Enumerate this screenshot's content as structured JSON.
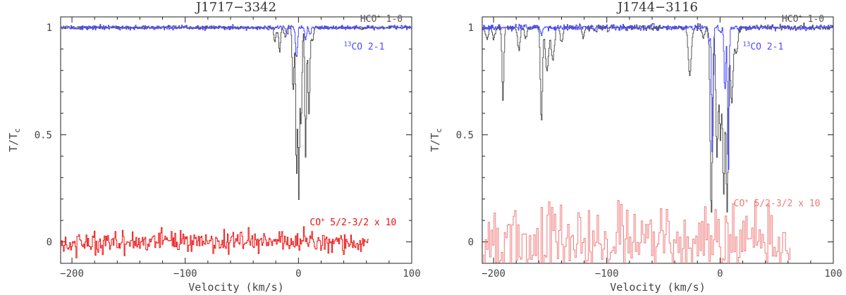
{
  "x_axis_label": "Velocity (km/s)",
  "y_axis_label": "T/T",
  "y_axis_label_sub": "c",
  "colors": {
    "hco": "#555555",
    "co13": "#4b4bff",
    "coplus_left": "#ee1111",
    "coplus_right": "#f07a7a",
    "axis": "#222222"
  },
  "chart_data": [
    {
      "type": "line",
      "title": "J1717−3342",
      "xlim": [
        -210,
        100
      ],
      "ylim": [
        -0.1,
        1.05
      ],
      "x_ticks": [
        -200,
        -100,
        0,
        100
      ],
      "x_tick_labels": [
        "−200",
        "−100",
        "0",
        "100"
      ],
      "y_ticks": [
        0,
        0.5,
        1
      ],
      "y_tick_labels": [
        "0",
        "0.5",
        "1"
      ],
      "xlabel": "Velocity (km/s)",
      "ylabel": "T/T_c",
      "series": [
        {
          "name": "HCO⁺ 1-0",
          "label_sup": "+",
          "label_main": "HCO",
          "label_rest": " 1-0",
          "baseline": 1.0,
          "noise": 0.004,
          "x_range": [
            -210,
            100
          ],
          "step": 0.6,
          "absorptions": [
            {
              "v": -21,
              "depth": 0.06,
              "width": 1.0
            },
            {
              "v": -17,
              "depth": 0.12,
              "width": 0.8
            },
            {
              "v": -12,
              "depth": 0.04,
              "width": 1.0
            },
            {
              "v": -5,
              "depth": 0.3,
              "width": 0.8
            },
            {
              "v": -2,
              "depth": 0.7,
              "width": 0.7
            },
            {
              "v": 0,
              "depth": 0.77,
              "width": 0.6
            },
            {
              "v": 2,
              "depth": 0.45,
              "width": 0.8
            },
            {
              "v": 6,
              "depth": 0.6,
              "width": 0.7
            },
            {
              "v": 9,
              "depth": 0.4,
              "width": 0.8
            },
            {
              "v": 12,
              "depth": 0.06,
              "width": 1.0
            }
          ]
        },
        {
          "name": "13CO 2-1",
          "label_sup": "13",
          "label_main": "CO",
          "label_rest": " 2-1",
          "baseline": 1.0,
          "noise": 0.005,
          "x_range": [
            -210,
            100
          ],
          "step": 0.6,
          "absorptions": [
            {
              "v": -10,
              "depth": 0.03,
              "width": 0.8
            },
            {
              "v": -2,
              "depth": 0.14,
              "width": 0.9
            },
            {
              "v": 6,
              "depth": 0.06,
              "width": 0.7
            },
            {
              "v": 10,
              "depth": 0.04,
              "width": 0.7
            }
          ]
        },
        {
          "name": "CO⁺ 5/2-3/2 x 10",
          "label_sup": "+",
          "label_main": "CO",
          "label_rest": " 5/2-3/2 x 10",
          "baseline": 0.0,
          "noise": 0.025,
          "x_range": [
            -210,
            62
          ],
          "step": 0.8,
          "absorptions": []
        }
      ]
    },
    {
      "type": "line",
      "title": "J1744−3116",
      "xlim": [
        -210,
        100
      ],
      "ylim": [
        -0.1,
        1.05
      ],
      "x_ticks": [
        -200,
        -100,
        0,
        100
      ],
      "x_tick_labels": [
        "−200",
        "−100",
        "0",
        "100"
      ],
      "y_ticks": [
        0,
        0.5,
        1
      ],
      "y_tick_labels": [
        "0",
        "0.5",
        "1"
      ],
      "xlabel": "Velocity (km/s)",
      "ylabel": "T/T_c",
      "series": [
        {
          "name": "HCO⁺ 1-0",
          "label_sup": "+",
          "label_main": "HCO",
          "label_rest": " 1-0",
          "baseline": 1.0,
          "noise": 0.006,
          "x_range": [
            -210,
            100
          ],
          "step": 0.6,
          "absorptions": [
            {
              "v": -206,
              "depth": 0.06,
              "width": 1.2
            },
            {
              "v": -200,
              "depth": 0.05,
              "width": 1.2
            },
            {
              "v": -192,
              "depth": 0.34,
              "width": 0.8
            },
            {
              "v": -178,
              "depth": 0.1,
              "width": 1.2
            },
            {
              "v": -172,
              "depth": 0.05,
              "width": 1.2
            },
            {
              "v": -158,
              "depth": 0.44,
              "width": 0.9
            },
            {
              "v": -153,
              "depth": 0.2,
              "width": 1.4
            },
            {
              "v": -148,
              "depth": 0.15,
              "width": 1.4
            },
            {
              "v": -140,
              "depth": 0.07,
              "width": 1.2
            },
            {
              "v": -121,
              "depth": 0.05,
              "width": 1.0
            },
            {
              "v": -110,
              "depth": 0.02,
              "width": 1.0
            },
            {
              "v": -27,
              "depth": 0.22,
              "width": 1.4
            },
            {
              "v": -15,
              "depth": 0.05,
              "width": 1.0
            },
            {
              "v": -8,
              "depth": 0.87,
              "width": 1.0
            },
            {
              "v": -3,
              "depth": 0.6,
              "width": 1.0
            },
            {
              "v": 0,
              "depth": 0.5,
              "width": 1.0
            },
            {
              "v": 3,
              "depth": 0.78,
              "width": 1.0
            },
            {
              "v": 6,
              "depth": 0.85,
              "width": 0.9
            },
            {
              "v": 10,
              "depth": 0.35,
              "width": 1.2
            },
            {
              "v": 14,
              "depth": 0.12,
              "width": 1.4
            }
          ]
        },
        {
          "name": "13CO 2-1",
          "label_sup": "13",
          "label_main": "CO",
          "label_rest": " 2-1",
          "baseline": 1.0,
          "noise": 0.006,
          "x_range": [
            -210,
            100
          ],
          "step": 0.6,
          "absorptions": [
            {
              "v": -158,
              "depth": 0.03,
              "width": 1.0
            },
            {
              "v": -10,
              "depth": 0.07,
              "width": 0.8
            },
            {
              "v": -7,
              "depth": 0.6,
              "width": 0.7
            },
            {
              "v": 0,
              "depth": 0.03,
              "width": 1.0
            },
            {
              "v": 4,
              "depth": 0.3,
              "width": 0.7
            },
            {
              "v": 7,
              "depth": 0.7,
              "width": 0.7
            }
          ]
        },
        {
          "name": "CO⁺ 5/2-3/2 x 10",
          "label_sup": "+",
          "label_main": "CO",
          "label_rest": " 5/2-3/2 x 10",
          "baseline": 0.0,
          "noise": 0.085,
          "x_range": [
            -210,
            62
          ],
          "step": 1.3,
          "absorptions": []
        }
      ]
    }
  ]
}
